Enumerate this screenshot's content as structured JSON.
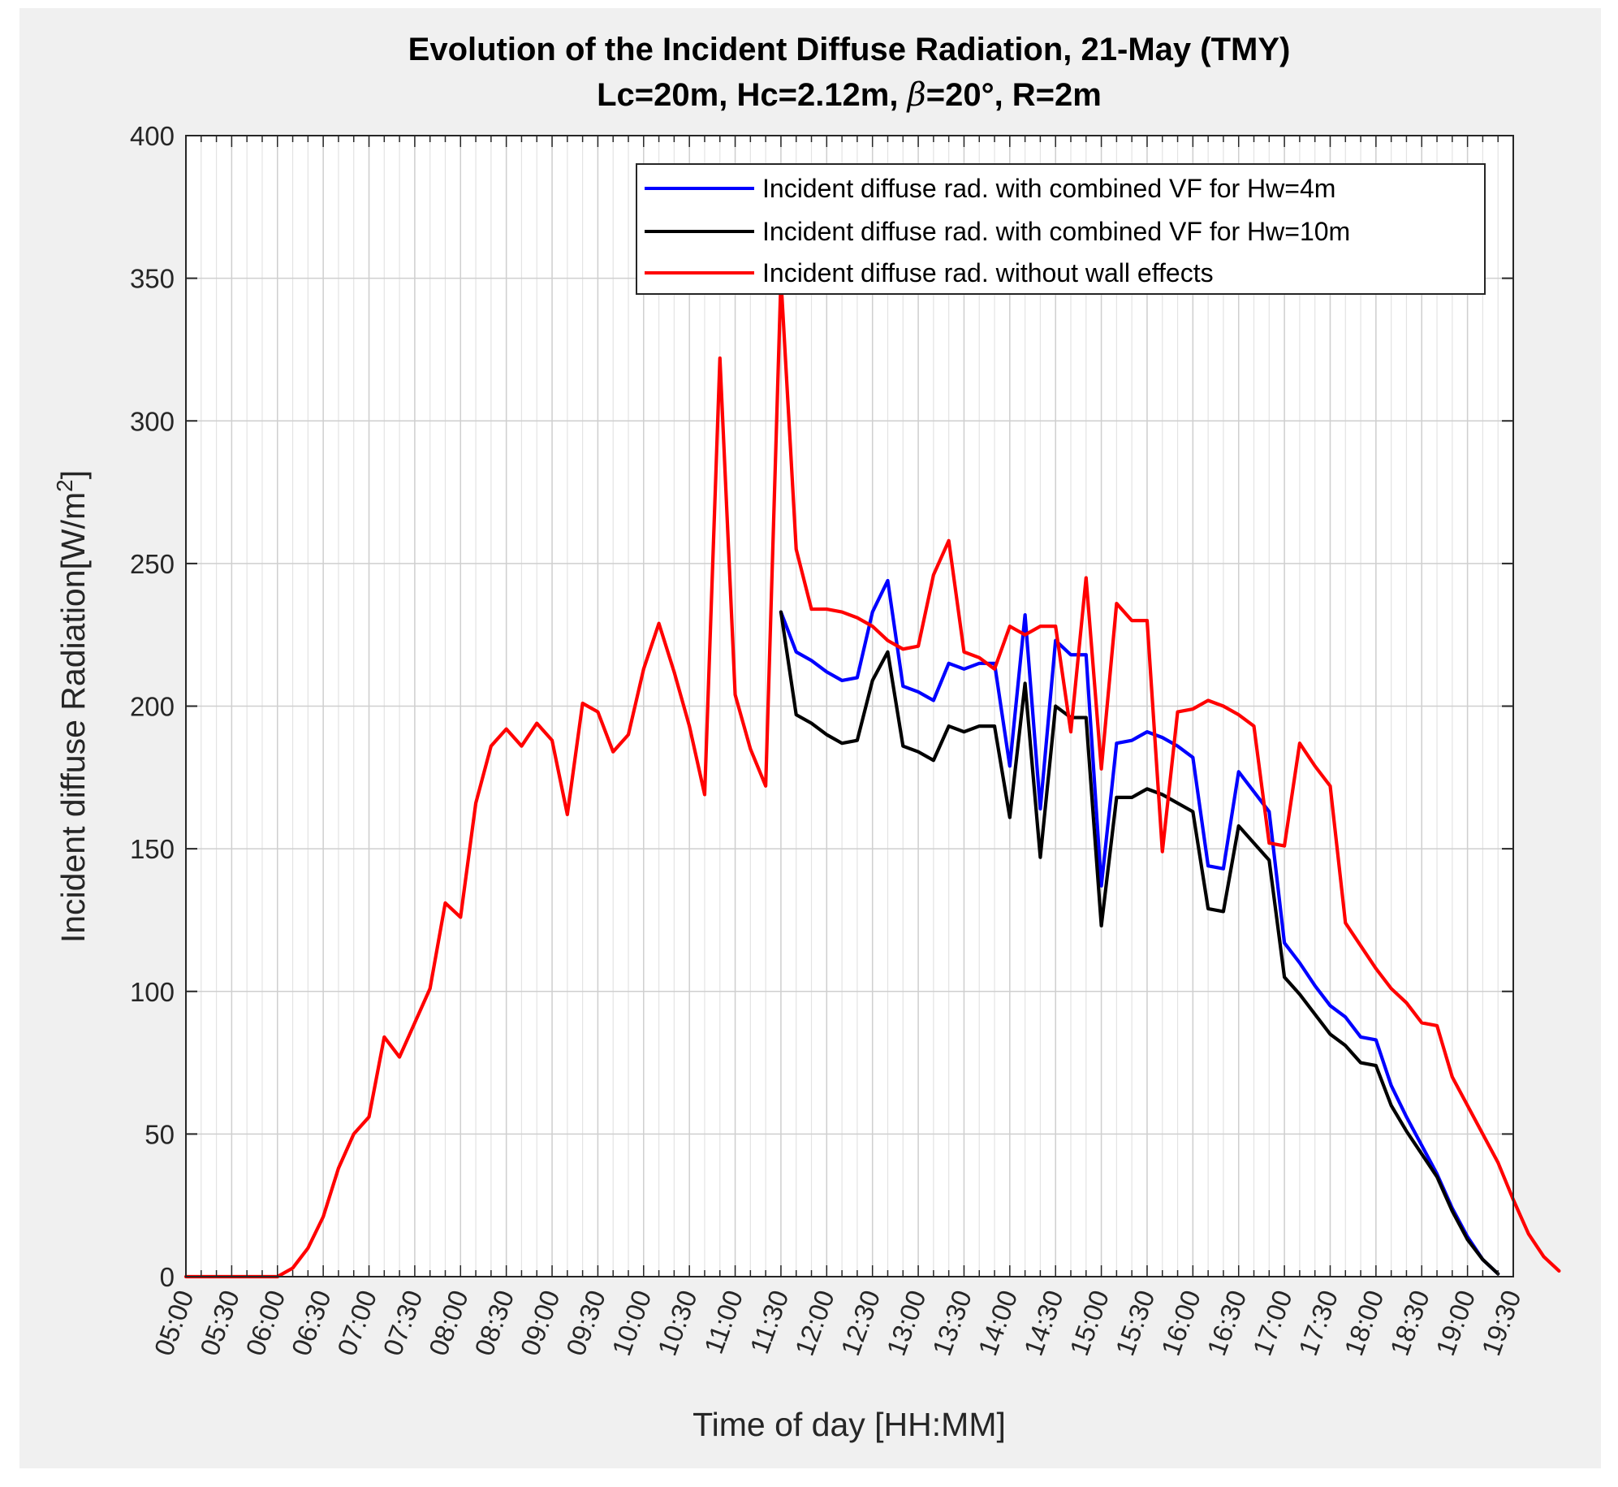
{
  "chart_data": {
    "type": "line",
    "title_line1": "Evolution of the Incident Diffuse Radiation, 21-May (TMY)",
    "title_line2_prefix": "Lc=20m, Hc=2.12m, ",
    "title_line2_symbol": "β",
    "title_line2_suffix": "=20°, R=2m",
    "xlabel": "Time of day [HH:MM]",
    "ylabel_main": "Incident diffuse Radiation[W/m",
    "ylabel_sup": "2",
    "ylabel_end": "]",
    "xlim_hours": [
      5.0,
      19.5
    ],
    "ylim": [
      0,
      400
    ],
    "yticks": [
      0,
      50,
      100,
      150,
      200,
      250,
      300,
      350,
      400
    ],
    "xtick_labels": [
      "05:00",
      "05:30",
      "06:00",
      "06:30",
      "07:00",
      "07:30",
      "08:00",
      "08:30",
      "09:00",
      "09:30",
      "10:00",
      "10:30",
      "11:00",
      "11:30",
      "12:00",
      "12:30",
      "13:00",
      "13:30",
      "14:00",
      "14:30",
      "15:00",
      "15:30",
      "16:00",
      "16:30",
      "17:00",
      "17:30",
      "18:00",
      "18:30",
      "19:00",
      "19:30"
    ],
    "grid": true,
    "minor_grid_step_minutes": 10,
    "legend_position": "top-right",
    "colors": {
      "blue": "#0000ff",
      "black": "#000000",
      "red": "#ff0000"
    },
    "x_step_minutes": 10,
    "series": [
      {
        "name": "Incident diffuse rad. with combined VF for Hw=4m",
        "color": "#0000ff",
        "x_start_hours": 11.5,
        "values": [
          233,
          219,
          216,
          212,
          209,
          210,
          233,
          244,
          207,
          205,
          202,
          215,
          213,
          215,
          215,
          179,
          232,
          164,
          223,
          218,
          218,
          137,
          187,
          188,
          191,
          189,
          186,
          182,
          144,
          143,
          177,
          170,
          163,
          117,
          110,
          102,
          95,
          91,
          84,
          83,
          67,
          56,
          46,
          36,
          24,
          14,
          6,
          1
        ]
      },
      {
        "name": "Incident diffuse rad. with combined VF for Hw=10m",
        "color": "#000000",
        "x_start_hours": 11.5,
        "values": [
          233,
          197,
          194,
          190,
          187,
          188,
          209,
          219,
          186,
          184,
          181,
          193,
          191,
          193,
          193,
          161,
          208,
          147,
          200,
          196,
          196,
          123,
          168,
          168,
          171,
          169,
          166,
          163,
          129,
          128,
          158,
          152,
          146,
          105,
          99,
          92,
          85,
          81,
          75,
          74,
          60,
          51,
          43,
          35,
          23,
          13,
          6,
          1
        ]
      },
      {
        "name": "Incident diffuse rad. without wall effects",
        "color": "#ff0000",
        "x_start_hours": 5.0,
        "values": [
          0,
          0,
          0,
          0,
          0,
          0,
          0,
          3,
          10,
          21,
          38,
          50,
          56,
          84,
          77,
          89,
          101,
          131,
          126,
          166,
          186,
          192,
          186,
          194,
          188,
          162,
          201,
          198,
          184,
          190,
          213,
          229,
          212,
          193,
          169,
          322,
          204,
          185,
          172,
          350,
          255,
          234,
          234,
          233,
          231,
          228,
          223,
          220,
          221,
          246,
          258,
          219,
          217,
          213,
          228,
          225,
          228,
          228,
          191,
          245,
          178,
          236,
          230,
          230,
          149,
          198,
          199,
          202,
          200,
          197,
          193,
          152,
          151,
          187,
          179,
          172,
          124,
          116,
          108,
          101,
          96,
          89,
          88,
          70,
          60,
          50,
          40,
          27,
          15,
          7,
          2
        ]
      }
    ]
  }
}
